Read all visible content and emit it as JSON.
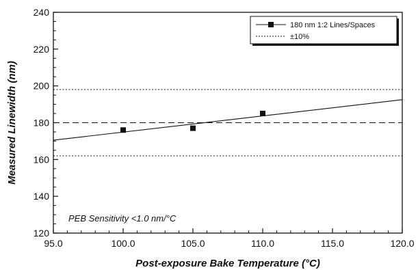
{
  "chart_data": {
    "type": "scatter",
    "title": "",
    "xlabel": "Post-exposure Bake Temperature (°C)",
    "ylabel": "Measured Linewidth (nm)",
    "xlim": [
      95.0,
      120.0
    ],
    "ylim": [
      120,
      240
    ],
    "x_ticks": [
      95.0,
      100.0,
      105.0,
      110.0,
      115.0,
      120.0
    ],
    "x_tick_labels": [
      "95.0",
      "100.0",
      "105.0",
      "110.0",
      "115.0",
      "120.0"
    ],
    "y_ticks": [
      120,
      140,
      160,
      180,
      200,
      220,
      240
    ],
    "y_tick_labels": [
      "120",
      "140",
      "160",
      "180",
      "200",
      "220",
      "240"
    ],
    "grid": false,
    "legend": {
      "placement": "top-right",
      "entries": [
        {
          "label": "180 nm 1:2 Lines/Spaces",
          "style": "line-with-square-marker"
        },
        {
          "label": "±10%",
          "style": "dotted-line"
        }
      ]
    },
    "series": [
      {
        "name": "180 nm 1:2 Lines/Spaces",
        "x": [
          100.0,
          105.0,
          110.0
        ],
        "y": [
          176,
          177,
          185
        ],
        "marker": "square",
        "color": "#111111"
      }
    ],
    "fit_line": {
      "x": [
        95.0,
        120.0
      ],
      "y": [
        170.5,
        192.5
      ]
    },
    "reference_lines": [
      {
        "y": 180,
        "style": "dashed"
      },
      {
        "y": 198,
        "style": "dotted"
      },
      {
        "y": 162,
        "style": "dotted"
      }
    ],
    "annotation": "PEB Sensitivity <1.0 nm/°C"
  }
}
